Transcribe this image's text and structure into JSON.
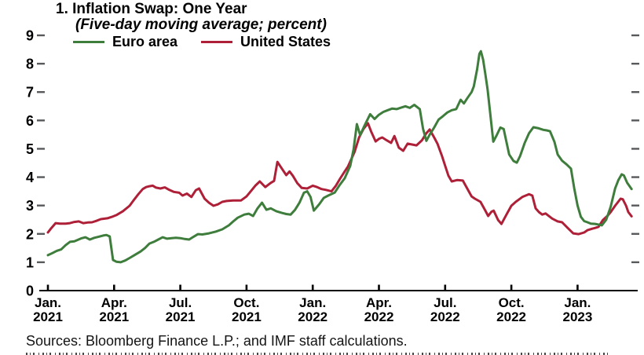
{
  "figure": {
    "sources": "Sources: Bloomberg Finance L.P.; and IMF staff calculations.",
    "colors": {
      "euro_area": "#3E7D3C",
      "united_states": "#AE2038",
      "axis": "#000000",
      "tick_dash": "#58595B",
      "text": "#000000"
    }
  },
  "chart_data": {
    "type": "line",
    "title": "1. Inflation Swap: One Year",
    "subtitle": "(Five-day moving average; percent)",
    "xlabel": "",
    "ylabel": "",
    "ylim": [
      0,
      9
    ],
    "y_ticks": [
      0,
      1,
      2,
      3,
      4,
      5,
      6,
      7,
      8,
      9
    ],
    "grid": false,
    "legend_position": "top-left",
    "x_unit": "months since Jan 2021",
    "x_axis": {
      "tick_months": [
        0,
        3,
        6,
        9,
        12,
        15,
        18,
        21,
        24
      ],
      "tick_labels": [
        [
          "Jan.",
          "2021"
        ],
        [
          "Apr.",
          "2021"
        ],
        [
          "Jul.",
          "2021"
        ],
        [
          "Oct.",
          "2021"
        ],
        [
          "Jan.",
          "2022"
        ],
        [
          "Apr.",
          "2022"
        ],
        [
          "Jul.",
          "2022"
        ],
        [
          "Oct.",
          "2022"
        ],
        [
          "Jan.",
          "2023"
        ]
      ]
    },
    "series": [
      {
        "name": "Euro area",
        "color": "#3E7D3C",
        "points": [
          [
            0.0,
            1.25
          ],
          [
            0.2,
            1.32
          ],
          [
            0.4,
            1.4
          ],
          [
            0.6,
            1.45
          ],
          [
            0.8,
            1.6
          ],
          [
            1.0,
            1.72
          ],
          [
            1.2,
            1.74
          ],
          [
            1.5,
            1.84
          ],
          [
            1.7,
            1.88
          ],
          [
            1.9,
            1.8
          ],
          [
            2.1,
            1.86
          ],
          [
            2.3,
            1.9
          ],
          [
            2.5,
            1.94
          ],
          [
            2.65,
            1.96
          ],
          [
            2.8,
            1.91
          ],
          [
            2.95,
            1.08
          ],
          [
            3.1,
            1.02
          ],
          [
            3.3,
            1.0
          ],
          [
            3.5,
            1.06
          ],
          [
            3.7,
            1.15
          ],
          [
            3.9,
            1.24
          ],
          [
            4.2,
            1.38
          ],
          [
            4.4,
            1.5
          ],
          [
            4.6,
            1.66
          ],
          [
            4.8,
            1.72
          ],
          [
            5.0,
            1.8
          ],
          [
            5.2,
            1.88
          ],
          [
            5.4,
            1.83
          ],
          [
            5.6,
            1.85
          ],
          [
            5.8,
            1.86
          ],
          [
            6.0,
            1.85
          ],
          [
            6.2,
            1.82
          ],
          [
            6.4,
            1.8
          ],
          [
            6.6,
            1.9
          ],
          [
            6.8,
            1.99
          ],
          [
            7.0,
            1.98
          ],
          [
            7.3,
            2.02
          ],
          [
            7.6,
            2.08
          ],
          [
            7.9,
            2.16
          ],
          [
            8.2,
            2.3
          ],
          [
            8.4,
            2.44
          ],
          [
            8.6,
            2.57
          ],
          [
            8.9,
            2.68
          ],
          [
            9.1,
            2.71
          ],
          [
            9.3,
            2.63
          ],
          [
            9.5,
            2.9
          ],
          [
            9.7,
            3.1
          ],
          [
            9.9,
            2.85
          ],
          [
            10.1,
            2.9
          ],
          [
            10.35,
            2.8
          ],
          [
            10.6,
            2.74
          ],
          [
            10.8,
            2.7
          ],
          [
            11.0,
            2.68
          ],
          [
            11.2,
            2.85
          ],
          [
            11.4,
            3.1
          ],
          [
            11.6,
            3.45
          ],
          [
            11.75,
            3.5
          ],
          [
            11.9,
            3.3
          ],
          [
            12.05,
            2.82
          ],
          [
            12.3,
            3.05
          ],
          [
            12.5,
            3.27
          ],
          [
            12.7,
            3.35
          ],
          [
            13.0,
            3.46
          ],
          [
            13.2,
            3.7
          ],
          [
            13.45,
            3.96
          ],
          [
            13.7,
            4.4
          ],
          [
            13.85,
            4.98
          ],
          [
            14.0,
            5.87
          ],
          [
            14.15,
            5.48
          ],
          [
            14.35,
            5.82
          ],
          [
            14.6,
            6.22
          ],
          [
            14.8,
            6.05
          ],
          [
            15.0,
            6.2
          ],
          [
            15.2,
            6.3
          ],
          [
            15.4,
            6.36
          ],
          [
            15.6,
            6.42
          ],
          [
            15.8,
            6.4
          ],
          [
            16.0,
            6.45
          ],
          [
            16.2,
            6.5
          ],
          [
            16.4,
            6.44
          ],
          [
            16.6,
            6.55
          ],
          [
            16.85,
            6.4
          ],
          [
            17.0,
            5.7
          ],
          [
            17.15,
            5.28
          ],
          [
            17.3,
            5.5
          ],
          [
            17.5,
            5.75
          ],
          [
            17.7,
            6.03
          ],
          [
            17.9,
            6.15
          ],
          [
            18.1,
            6.28
          ],
          [
            18.3,
            6.36
          ],
          [
            18.5,
            6.4
          ],
          [
            18.7,
            6.73
          ],
          [
            18.85,
            6.6
          ],
          [
            19.0,
            6.78
          ],
          [
            19.2,
            7.0
          ],
          [
            19.3,
            7.2
          ],
          [
            19.45,
            7.8
          ],
          [
            19.55,
            8.35
          ],
          [
            19.62,
            8.44
          ],
          [
            19.72,
            8.15
          ],
          [
            19.82,
            7.65
          ],
          [
            19.92,
            7.1
          ],
          [
            20.02,
            6.4
          ],
          [
            20.18,
            5.25
          ],
          [
            20.35,
            5.5
          ],
          [
            20.5,
            5.75
          ],
          [
            20.65,
            5.7
          ],
          [
            20.9,
            4.8
          ],
          [
            21.1,
            4.57
          ],
          [
            21.25,
            4.51
          ],
          [
            21.4,
            4.75
          ],
          [
            21.6,
            5.2
          ],
          [
            21.8,
            5.55
          ],
          [
            22.0,
            5.76
          ],
          [
            22.2,
            5.73
          ],
          [
            22.45,
            5.67
          ],
          [
            22.6,
            5.65
          ],
          [
            22.75,
            5.62
          ],
          [
            22.95,
            5.25
          ],
          [
            23.1,
            4.8
          ],
          [
            23.3,
            4.58
          ],
          [
            23.5,
            4.45
          ],
          [
            23.7,
            4.3
          ],
          [
            23.85,
            3.6
          ],
          [
            24.0,
            3.0
          ],
          [
            24.15,
            2.6
          ],
          [
            24.3,
            2.45
          ],
          [
            24.45,
            2.41
          ],
          [
            24.6,
            2.36
          ],
          [
            24.8,
            2.35
          ],
          [
            25.0,
            2.32
          ],
          [
            25.1,
            2.3
          ],
          [
            25.3,
            2.5
          ],
          [
            25.5,
            2.96
          ],
          [
            25.7,
            3.6
          ],
          [
            25.85,
            3.9
          ],
          [
            26.0,
            4.1
          ],
          [
            26.1,
            4.06
          ],
          [
            26.25,
            3.8
          ],
          [
            26.45,
            3.58
          ]
        ]
      },
      {
        "name": "United States",
        "color": "#AE2038",
        "points": [
          [
            0.0,
            2.05
          ],
          [
            0.15,
            2.2
          ],
          [
            0.35,
            2.38
          ],
          [
            0.55,
            2.36
          ],
          [
            0.8,
            2.36
          ],
          [
            1.0,
            2.38
          ],
          [
            1.2,
            2.42
          ],
          [
            1.4,
            2.44
          ],
          [
            1.6,
            2.38
          ],
          [
            1.8,
            2.4
          ],
          [
            2.0,
            2.41
          ],
          [
            2.2,
            2.46
          ],
          [
            2.4,
            2.52
          ],
          [
            2.7,
            2.55
          ],
          [
            2.9,
            2.6
          ],
          [
            3.1,
            2.66
          ],
          [
            3.4,
            2.8
          ],
          [
            3.7,
            2.99
          ],
          [
            3.9,
            3.2
          ],
          [
            4.1,
            3.4
          ],
          [
            4.3,
            3.58
          ],
          [
            4.45,
            3.65
          ],
          [
            4.6,
            3.68
          ],
          [
            4.75,
            3.7
          ],
          [
            4.9,
            3.63
          ],
          [
            5.1,
            3.6
          ],
          [
            5.3,
            3.64
          ],
          [
            5.5,
            3.55
          ],
          [
            5.7,
            3.48
          ],
          [
            5.95,
            3.45
          ],
          [
            6.1,
            3.35
          ],
          [
            6.3,
            3.42
          ],
          [
            6.5,
            3.3
          ],
          [
            6.7,
            3.54
          ],
          [
            6.85,
            3.6
          ],
          [
            7.1,
            3.24
          ],
          [
            7.3,
            3.1
          ],
          [
            7.5,
            2.99
          ],
          [
            7.7,
            3.04
          ],
          [
            7.9,
            3.13
          ],
          [
            8.1,
            3.16
          ],
          [
            8.4,
            3.18
          ],
          [
            8.75,
            3.18
          ],
          [
            9.0,
            3.32
          ],
          [
            9.2,
            3.51
          ],
          [
            9.4,
            3.7
          ],
          [
            9.6,
            3.85
          ],
          [
            9.85,
            3.65
          ],
          [
            10.1,
            3.8
          ],
          [
            10.25,
            3.87
          ],
          [
            10.4,
            4.54
          ],
          [
            10.6,
            4.3
          ],
          [
            10.8,
            4.07
          ],
          [
            10.95,
            4.2
          ],
          [
            11.1,
            4.05
          ],
          [
            11.3,
            3.79
          ],
          [
            11.5,
            3.62
          ],
          [
            11.75,
            3.6
          ],
          [
            12.0,
            3.7
          ],
          [
            12.2,
            3.65
          ],
          [
            12.4,
            3.58
          ],
          [
            12.6,
            3.55
          ],
          [
            12.85,
            3.5
          ],
          [
            13.05,
            3.7
          ],
          [
            13.25,
            3.96
          ],
          [
            13.45,
            4.2
          ],
          [
            13.6,
            4.38
          ],
          [
            13.9,
            4.9
          ],
          [
            14.1,
            5.4
          ],
          [
            14.3,
            5.7
          ],
          [
            14.5,
            5.9
          ],
          [
            14.65,
            5.6
          ],
          [
            14.85,
            5.26
          ],
          [
            15.0,
            5.35
          ],
          [
            15.15,
            5.4
          ],
          [
            15.35,
            5.3
          ],
          [
            15.55,
            5.21
          ],
          [
            15.7,
            5.45
          ],
          [
            15.9,
            5.04
          ],
          [
            16.1,
            4.93
          ],
          [
            16.3,
            5.18
          ],
          [
            16.5,
            5.15
          ],
          [
            16.7,
            5.12
          ],
          [
            16.95,
            5.3
          ],
          [
            17.15,
            5.55
          ],
          [
            17.3,
            5.68
          ],
          [
            17.5,
            5.4
          ],
          [
            17.65,
            5.18
          ],
          [
            17.85,
            4.76
          ],
          [
            18.0,
            4.4
          ],
          [
            18.15,
            4.05
          ],
          [
            18.3,
            3.85
          ],
          [
            18.55,
            3.9
          ],
          [
            18.8,
            3.88
          ],
          [
            19.0,
            3.6
          ],
          [
            19.2,
            3.32
          ],
          [
            19.35,
            3.24
          ],
          [
            19.6,
            3.13
          ],
          [
            19.8,
            2.85
          ],
          [
            19.95,
            2.63
          ],
          [
            20.1,
            2.78
          ],
          [
            20.2,
            2.82
          ],
          [
            20.4,
            2.49
          ],
          [
            20.55,
            2.35
          ],
          [
            20.8,
            2.71
          ],
          [
            21.0,
            2.99
          ],
          [
            21.2,
            3.13
          ],
          [
            21.5,
            3.3
          ],
          [
            21.8,
            3.4
          ],
          [
            21.95,
            3.35
          ],
          [
            22.1,
            2.9
          ],
          [
            22.25,
            2.77
          ],
          [
            22.4,
            2.68
          ],
          [
            22.55,
            2.72
          ],
          [
            22.85,
            2.54
          ],
          [
            23.1,
            2.44
          ],
          [
            23.3,
            2.41
          ],
          [
            23.55,
            2.21
          ],
          [
            23.8,
            2.02
          ],
          [
            24.05,
            1.99
          ],
          [
            24.3,
            2.05
          ],
          [
            24.45,
            2.13
          ],
          [
            24.65,
            2.18
          ],
          [
            24.8,
            2.21
          ],
          [
            24.95,
            2.25
          ],
          [
            25.15,
            2.49
          ],
          [
            25.35,
            2.63
          ],
          [
            25.5,
            2.77
          ],
          [
            25.7,
            2.99
          ],
          [
            25.95,
            3.24
          ],
          [
            26.05,
            3.22
          ],
          [
            26.2,
            2.99
          ],
          [
            26.3,
            2.77
          ],
          [
            26.45,
            2.62
          ]
        ]
      }
    ]
  }
}
